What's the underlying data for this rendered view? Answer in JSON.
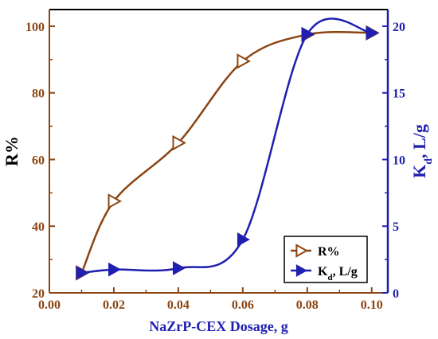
{
  "chart_data": {
    "type": "line",
    "title": "",
    "xlabel": "NaZrP-CEX Dosage, g",
    "ylabel_left": "R%",
    "ylabel_right_main": "K",
    "ylabel_right_sub": "d",
    "ylabel_right_rest": ", L/g",
    "xlim": [
      0.0,
      0.105
    ],
    "ylim_left": [
      20,
      105
    ],
    "ylim_right": [
      0,
      21.25
    ],
    "x_ticks": [
      "0.00",
      "0.02",
      "0.04",
      "0.06",
      "0.08",
      "0.10"
    ],
    "left_ticks": [
      "20",
      "40",
      "60",
      "80",
      "100"
    ],
    "right_ticks": [
      "0",
      "5",
      "10",
      "15",
      "20"
    ],
    "grid": false,
    "legend_position": "bottom-right",
    "series": [
      {
        "name": "R%",
        "axis": "left",
        "color": "#8B4513",
        "marker": "triangle-right-open",
        "x": [
          0.01,
          0.02,
          0.04,
          0.06,
          0.08,
          0.1
        ],
        "y": [
          26,
          47.5,
          65,
          89.5,
          97.5,
          98
        ]
      },
      {
        "name_main": "K",
        "name_sub": "d",
        "name_rest": ", L/g",
        "axis": "right",
        "color": "#1f1fb0",
        "marker": "triangle-right-filled",
        "x": [
          0.01,
          0.02,
          0.04,
          0.06,
          0.08,
          0.1
        ],
        "y": [
          1.5,
          1.75,
          1.85,
          4.0,
          19.4,
          19.5
        ]
      }
    ]
  },
  "colors": {
    "left_axis": "#8B4513",
    "right_axis": "#1f1fb0",
    "frame": "#000000"
  }
}
